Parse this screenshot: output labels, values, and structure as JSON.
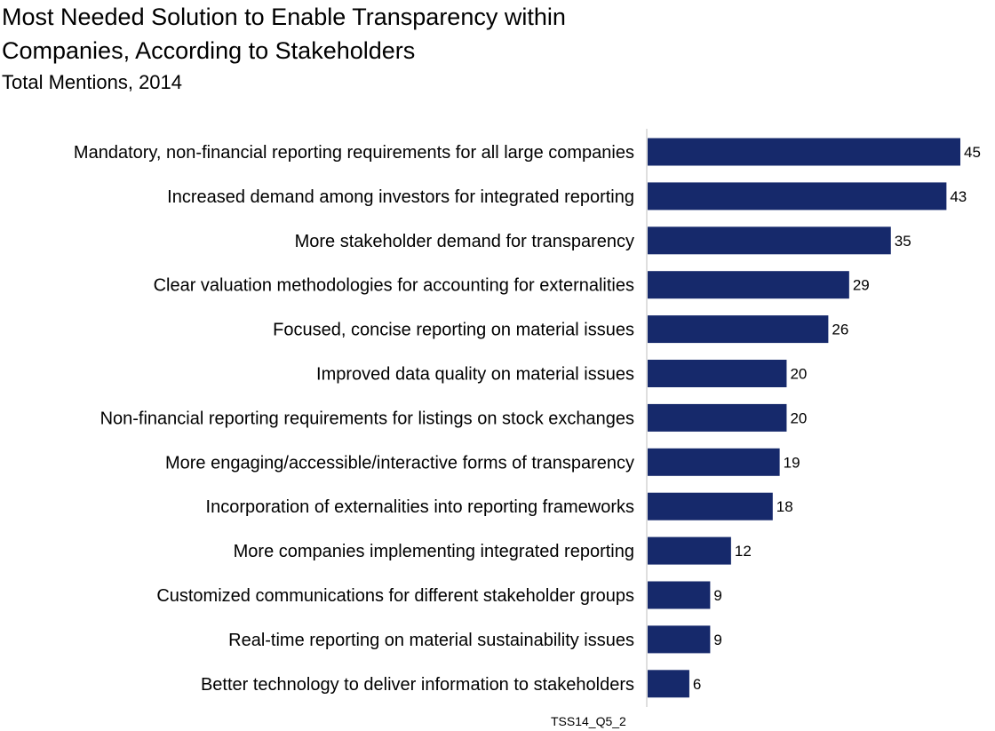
{
  "title": "Most Needed Solution to Enable Transparency within Companies, According to Stakeholders",
  "subtitle": "Total Mentions, 2014",
  "source_code": "TSS14_Q5_2",
  "colors": {
    "bar": "#16296b",
    "axis": "#bfbfbf"
  },
  "chart_data": {
    "type": "bar",
    "orientation": "horizontal",
    "title": "Most Needed Solution to Enable Transparency within Companies, According to Stakeholders",
    "subtitle": "Total Mentions, 2014",
    "xlabel": "",
    "ylabel": "",
    "xlim": [
      0,
      45
    ],
    "grid": false,
    "legend": "none",
    "categories": [
      "Mandatory, non-financial reporting requirements for all large companies",
      "Increased demand among investors for integrated reporting",
      "More stakeholder demand for transparency",
      "Clear valuation methodologies for accounting for externalities",
      "Focused, concise reporting on material issues",
      "Improved data quality on material issues",
      "Non-financial reporting requirements for listings on stock exchanges",
      "More engaging/accessible/interactive forms of transparency",
      "Incorporation of externalities into reporting frameworks",
      "More companies implementing integrated reporting",
      "Customized communications for different stakeholder groups",
      "Real-time reporting on material sustainability issues",
      "Better technology to deliver information to stakeholders"
    ],
    "values": [
      45,
      43,
      35,
      29,
      26,
      20,
      20,
      19,
      18,
      12,
      9,
      9,
      6
    ]
  }
}
